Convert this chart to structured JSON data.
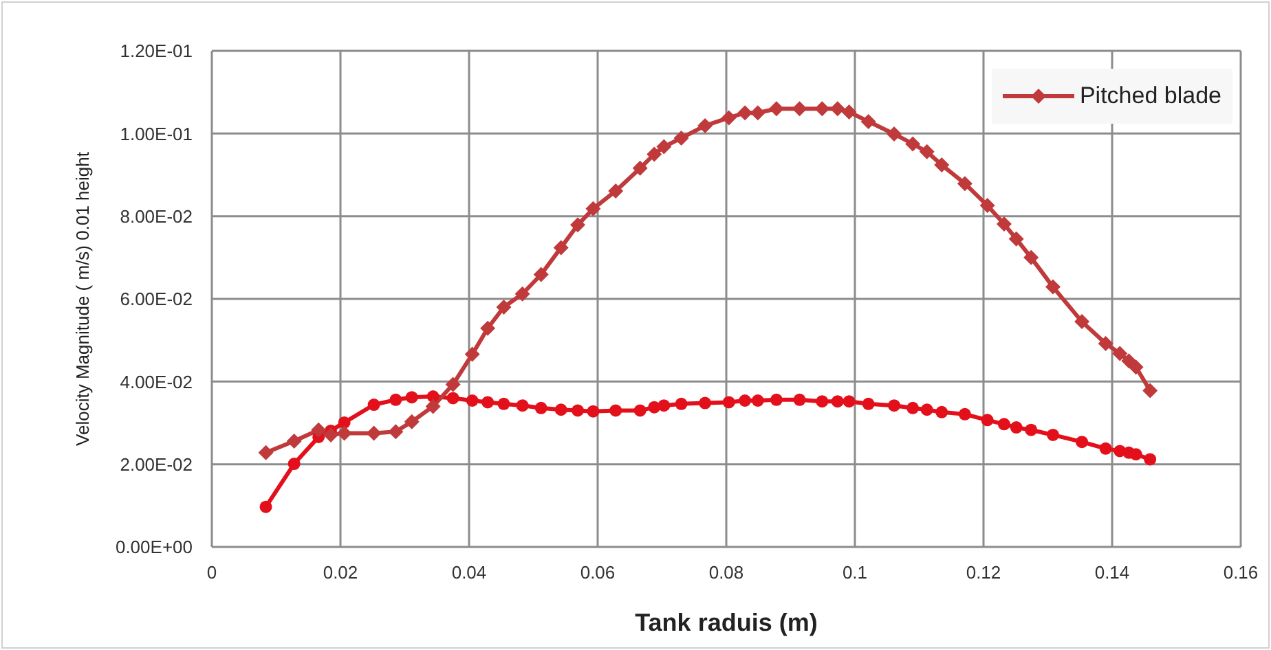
{
  "chart_data": {
    "type": "line",
    "xlabel": "Tank raduis (m)",
    "ylabel": "Velocity Magnitude ( m/s) 0.01 height",
    "xlim": [
      0,
      0.16
    ],
    "xticks": [
      0,
      0.02,
      0.04,
      0.06,
      0.08,
      0.1,
      0.12,
      0.14,
      0.16
    ],
    "ylim": [
      0,
      0.12
    ],
    "yticks": [
      {
        "value": 0,
        "label": "0.00E+00"
      },
      {
        "value": 0.02,
        "label": "2.00E-02"
      },
      {
        "value": 0.04,
        "label": "4.00E-02"
      },
      {
        "value": 0.06,
        "label": "6.00E-02"
      },
      {
        "value": 0.08,
        "label": "8.00E-02"
      },
      {
        "value": 0.1,
        "label": "1.00E-01"
      },
      {
        "value": 0.12,
        "label": "1.20E-01"
      }
    ],
    "grid": true,
    "legend": "top right",
    "x": [
      0.0084,
      0.0128,
      0.0166,
      0.0185,
      0.0206,
      0.0252,
      0.0286,
      0.0311,
      0.0344,
      0.0375,
      0.0405,
      0.0429,
      0.0454,
      0.0483,
      0.0512,
      0.0543,
      0.0569,
      0.0593,
      0.0628,
      0.0666,
      0.0688,
      0.0703,
      0.073,
      0.0767,
      0.0804,
      0.0829,
      0.0849,
      0.0878,
      0.0914,
      0.0949,
      0.0973,
      0.0991,
      0.1021,
      0.1061,
      0.109,
      0.1112,
      0.1135,
      0.1171,
      0.1206,
      0.1232,
      0.1251,
      0.1274,
      0.1308,
      0.1353,
      0.139,
      0.1412,
      0.1426,
      0.1437,
      0.1459
    ],
    "series": [
      {
        "color": "#e3101c",
        "marker": "circle",
        "values": [
          0.0097,
          0.0201,
          0.0266,
          0.0281,
          0.0301,
          0.0344,
          0.0356,
          0.0362,
          0.0364,
          0.036,
          0.0354,
          0.035,
          0.0346,
          0.0342,
          0.0336,
          0.0332,
          0.033,
          0.0328,
          0.033,
          0.033,
          0.0338,
          0.0342,
          0.0346,
          0.0348,
          0.035,
          0.0354,
          0.0354,
          0.0356,
          0.0356,
          0.0352,
          0.0352,
          0.0352,
          0.0346,
          0.0342,
          0.0336,
          0.0332,
          0.0326,
          0.0321,
          0.0307,
          0.0297,
          0.0289,
          0.0283,
          0.0271,
          0.0254,
          0.0238,
          0.0232,
          0.0228,
          0.0224,
          0.0212
        ]
      },
      {
        "name": "Pitched blade",
        "color": "#c0393b",
        "marker": "diamond",
        "values": [
          0.0228,
          0.0256,
          0.0283,
          0.0271,
          0.0275,
          0.0275,
          0.0279,
          0.0303,
          0.034,
          0.0393,
          0.0466,
          0.0529,
          0.058,
          0.0612,
          0.0659,
          0.0724,
          0.0779,
          0.0818,
          0.0861,
          0.0916,
          0.095,
          0.0968,
          0.0989,
          0.1019,
          0.1038,
          0.105,
          0.105,
          0.106,
          0.106,
          0.106,
          0.106,
          0.1052,
          0.1029,
          0.0999,
          0.0975,
          0.0956,
          0.0924,
          0.0879,
          0.0826,
          0.0781,
          0.0745,
          0.07,
          0.0629,
          0.0545,
          0.0492,
          0.0468,
          0.045,
          0.0435,
          0.0378
        ]
      }
    ]
  }
}
